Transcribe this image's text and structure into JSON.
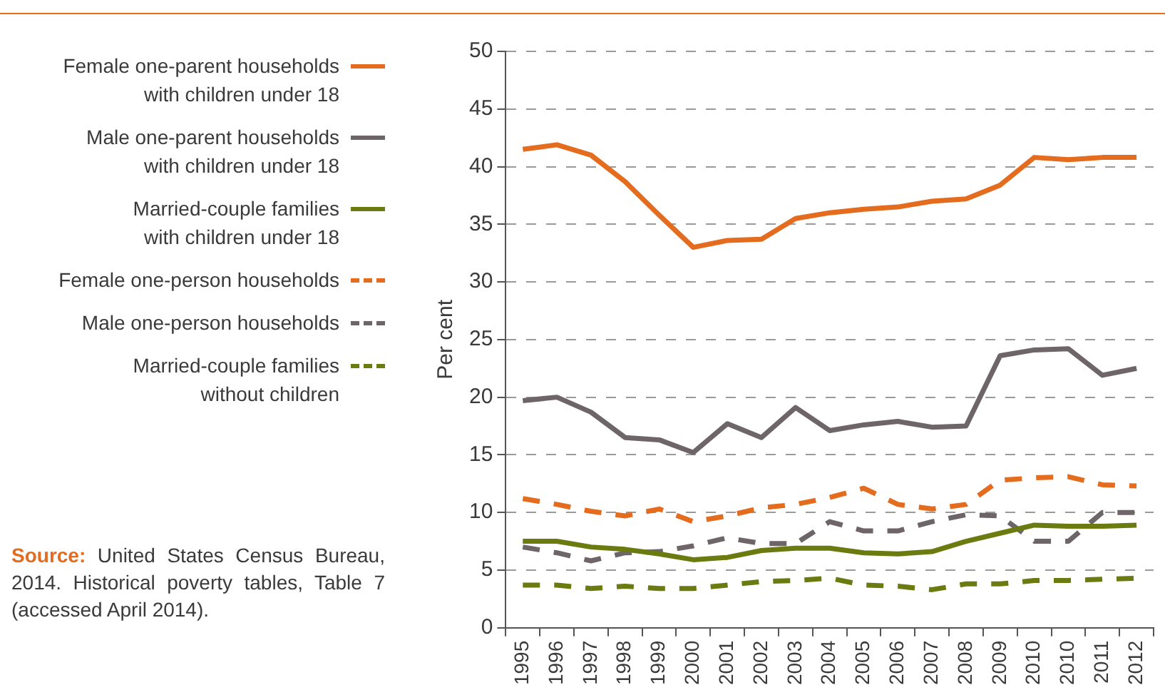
{
  "chart_data": {
    "type": "line",
    "ylabel": "Per cent",
    "categories": [
      "1995",
      "1996",
      "1997",
      "1998",
      "1999",
      "2000",
      "2001",
      "2002",
      "2003",
      "2004",
      "2005",
      "2006",
      "2007",
      "2008",
      "2009",
      "2010",
      "2010",
      "2011",
      "2012"
    ],
    "ylim": [
      0,
      50
    ],
    "yticks": [
      0,
      5,
      10,
      15,
      20,
      25,
      30,
      35,
      40,
      45,
      50
    ],
    "grid": "y",
    "legend": "left",
    "marker": "none",
    "series": [
      {
        "name": "Female one-parent households with children under 18",
        "color": "#e46c1f",
        "line_style": "solid",
        "values": [
          41.5,
          41.9,
          41.0,
          38.7,
          35.8,
          33.0,
          33.6,
          33.7,
          35.5,
          36.0,
          36.3,
          36.5,
          37.0,
          37.2,
          38.4,
          40.8,
          40.6,
          40.8,
          40.8
        ]
      },
      {
        "name": "Male one-parent households with children under 18",
        "color": "#6d6567",
        "line_style": "solid",
        "values": [
          19.7,
          20.0,
          18.7,
          16.5,
          16.3,
          15.2,
          17.7,
          16.5,
          19.1,
          17.1,
          17.6,
          17.9,
          17.4,
          17.5,
          23.6,
          24.1,
          24.2,
          21.9,
          22.5
        ]
      },
      {
        "name": "Married-couple families with children under 18",
        "color": "#6b7b10",
        "line_style": "solid",
        "values": [
          7.5,
          7.5,
          7.0,
          6.8,
          6.4,
          5.9,
          6.1,
          6.7,
          6.9,
          6.9,
          6.5,
          6.4,
          6.6,
          7.5,
          8.2,
          8.9,
          8.8,
          8.8,
          8.9
        ]
      },
      {
        "name": "Female one-person households",
        "color": "#e46c1f",
        "line_style": "dashed",
        "values": [
          11.2,
          10.7,
          10.1,
          9.7,
          10.3,
          9.2,
          9.7,
          10.4,
          10.7,
          11.3,
          12.1,
          10.7,
          10.3,
          10.7,
          12.8,
          13.0,
          13.1,
          12.4,
          12.3
        ]
      },
      {
        "name": "Male one-person households",
        "color": "#6d6567",
        "line_style": "dashed",
        "values": [
          7.0,
          6.5,
          5.8,
          6.5,
          6.6,
          7.1,
          7.8,
          7.3,
          7.3,
          9.2,
          8.4,
          8.4,
          9.2,
          9.8,
          9.7,
          7.5,
          7.5,
          10.0,
          10.0
        ]
      },
      {
        "name": "Married-couple families without children",
        "color": "#6b7b10",
        "line_style": "dashed",
        "values": [
          3.7,
          3.7,
          3.4,
          3.6,
          3.4,
          3.4,
          3.7,
          4.0,
          4.1,
          4.3,
          3.7,
          3.6,
          3.3,
          3.8,
          3.8,
          4.1,
          4.1,
          4.2,
          4.3
        ]
      }
    ],
    "annotations": [
      "Source: United States Census Bureau, 2014. Historical poverty tables, Table 7 (accessed April 2014)."
    ]
  }
}
